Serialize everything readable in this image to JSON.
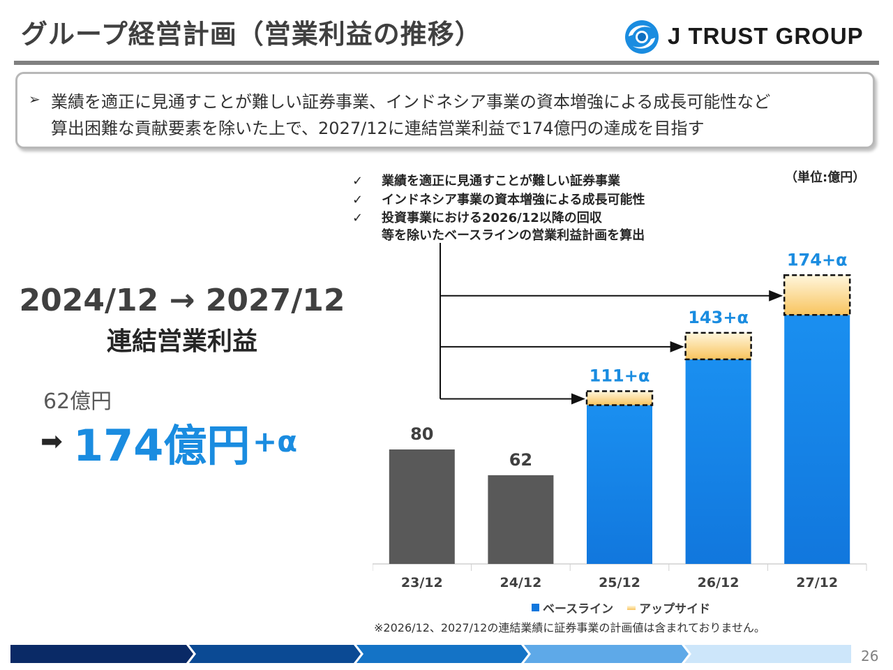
{
  "slide": {
    "title": "グループ経営計画（営業利益の推移）",
    "logo_text": "J TRUST GROUP",
    "page_number": "26"
  },
  "summary": {
    "bullet": "➢",
    "line1": "業績を適正に見通すことが難しい証券事業、インドネシア事業の資本増強による成長可能性など",
    "line2": "算出困難な貢献要素を除いた上で、2027/12に連結営業利益で174億円の達成を目指す"
  },
  "left": {
    "period": "2024/12 → 2027/12",
    "metric": "連結営業利益",
    "from_value": "62億円",
    "arrow": "➡",
    "to_value": "174億円",
    "to_suffix": "+α"
  },
  "checklist": {
    "mark": "✓",
    "item1": "業績を適正に見通すことが難しい証券事業",
    "item2": "インドネシア事業の資本増強による成長可能性",
    "item3": "投資事業における2026/12以降の回収",
    "item4": "等を除いたベースラインの営業利益計画を算出"
  },
  "unit_label": "（単位:億円）",
  "legend": {
    "baseline": "ベースライン",
    "upside": "アップサイド"
  },
  "footnote": "※2026/12、2027/12の連結業績に証券事業の計画値は含まれておりません。",
  "colors": {
    "actual_bar": "#595959",
    "plan_bar": "#1177dd",
    "accent_text": "#1a8ce0",
    "upside_top": "#fff6dc",
    "upside_bottom": "#f8c45e"
  },
  "chart_data": {
    "type": "bar",
    "stacked": true,
    "unit": "億円",
    "categories": [
      "23/12",
      "24/12",
      "25/12",
      "26/12",
      "27/12"
    ],
    "actual_values": [
      80,
      62,
      null,
      null,
      null
    ],
    "baseline_values": [
      null,
      null,
      111,
      143,
      174
    ],
    "data_labels": [
      "80",
      "62",
      "111+α",
      "143+α",
      "174+α"
    ],
    "upside_present": [
      false,
      false,
      true,
      true,
      true
    ],
    "legend_position": "bottom-center",
    "grid": false,
    "ylim": [
      0,
      180
    ]
  }
}
